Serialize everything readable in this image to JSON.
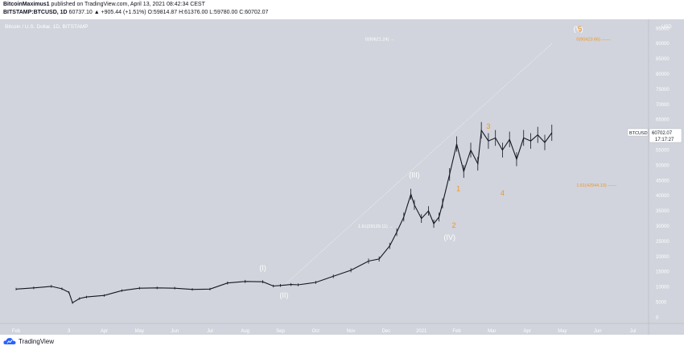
{
  "header": {
    "author": "BitcoinMaximus1",
    "published": "published on TradingView.com, April 13, 2021 08:42:34 CEST",
    "symbol": "BITSTAMP:BTCUSD, 1D",
    "quote": "60737.10 ▲ +905.44 (+1.51%) O:59814.87 H:61376.00 L:59780.00 C:60702.07"
  },
  "footer": {
    "brand": "TradingView"
  },
  "chart_data": {
    "type": "line",
    "title": "Bitcoin / U.S. Dollar, 1D, BITSTAMP",
    "currency": "USD",
    "ylim": [
      -2000,
      98000
    ],
    "y_ticks": [
      0,
      5000,
      10000,
      15000,
      20000,
      25000,
      30000,
      35000,
      40000,
      45000,
      50000,
      55000,
      60000,
      65000,
      70000,
      75000,
      80000,
      85000,
      90000,
      95000
    ],
    "x_ticks": [
      "Feb",
      "3",
      "Apr",
      "May",
      "Jun",
      "Jul",
      "Aug",
      "Sep",
      "Oct",
      "Nov",
      "Dec",
      "2021",
      "Feb",
      "Mar",
      "Apr",
      "May",
      "Jun",
      "Jul"
    ],
    "x_tick_index": [
      0,
      1.5,
      2.5,
      3.5,
      4.5,
      5.5,
      6.5,
      7.5,
      8.5,
      9.5,
      10.5,
      11.5,
      12.5,
      13.5,
      14.5,
      15.5,
      16.5,
      17.5
    ],
    "series": [
      {
        "name": "BTCUSD",
        "x": [
          0,
          0.5,
          1.0,
          1.3,
          1.5,
          1.6,
          1.8,
          2.0,
          2.5,
          3.0,
          3.5,
          4.0,
          4.5,
          5.0,
          5.5,
          6.0,
          6.5,
          7.0,
          7.3,
          7.5,
          7.8,
          8.0,
          8.5,
          9.0,
          9.5,
          10.0,
          10.3,
          10.6,
          10.8,
          11.0,
          11.2,
          11.3,
          11.5,
          11.7,
          11.85,
          12.0,
          12.1,
          12.3,
          12.5,
          12.7,
          12.9,
          13.1,
          13.2,
          13.4,
          13.6,
          13.8,
          14.0,
          14.2,
          14.4,
          14.6,
          14.8,
          15.0,
          15.2
        ],
        "values": [
          9300,
          9700,
          10200,
          9400,
          8200,
          4800,
          6200,
          6700,
          7200,
          8800,
          9600,
          9700,
          9600,
          9200,
          9300,
          11300,
          11800,
          11700,
          10300,
          10500,
          10800,
          10700,
          11500,
          13500,
          15500,
          18500,
          19200,
          23500,
          28000,
          33000,
          40500,
          37000,
          32500,
          35000,
          30800,
          33000,
          37500,
          47000,
          57000,
          48000,
          55000,
          50500,
          61500,
          58000,
          59000,
          55000,
          58500,
          52000,
          59000,
          58000,
          60000,
          57500,
          60702
        ]
      }
    ],
    "fib_projection": {
      "from": {
        "x": 7.6,
        "y": 10500
      },
      "to": {
        "x": 15.2,
        "y": 90000
      }
    },
    "annotations": [
      {
        "text": "0(90621.24) →",
        "x": 9.9,
        "y": 91000,
        "color": "gray"
      },
      {
        "text": "0(90423.66) ——",
        "x": 15.9,
        "y": 91000,
        "color": "orange"
      },
      {
        "text": "1.61(42944.10) ——",
        "x": 15.9,
        "y": 43000,
        "color": "orange"
      },
      {
        "text": "1.61(29129.11) →",
        "x": 9.7,
        "y": 29500,
        "color": "gray"
      },
      {
        "text": "(I)",
        "x": 7.0,
        "y": 15500,
        "color": "white"
      },
      {
        "text": "(II)",
        "x": 7.6,
        "y": 6500,
        "color": "white"
      },
      {
        "text": "(III)",
        "x": 11.3,
        "y": 46000,
        "color": "white"
      },
      {
        "text": "(IV)",
        "x": 12.3,
        "y": 25500,
        "color": "white"
      },
      {
        "text": "(V)",
        "x": 15.95,
        "y": 94000,
        "color": "white"
      },
      {
        "text": "1",
        "x": 12.55,
        "y": 41500,
        "color": "orange"
      },
      {
        "text": "2",
        "x": 12.42,
        "y": 29500,
        "color": "orange"
      },
      {
        "text": "3",
        "x": 13.4,
        "y": 62000,
        "color": "orange"
      },
      {
        "text": "4",
        "x": 13.8,
        "y": 40000,
        "color": "orange"
      },
      {
        "text": "5",
        "x": 16.0,
        "y": 94000,
        "color": "orange"
      }
    ],
    "last_price": {
      "label": "BTCUSD",
      "value": "60702.07",
      "countdown": "17:17:27",
      "y": 60702
    }
  },
  "colors": {
    "plot_bg": "#d1d4dc",
    "price_line": "#131722",
    "orange": "#f7931a",
    "white": "#ffffff",
    "gray_text": "#ffffff",
    "axis_text": "#ffffff"
  }
}
